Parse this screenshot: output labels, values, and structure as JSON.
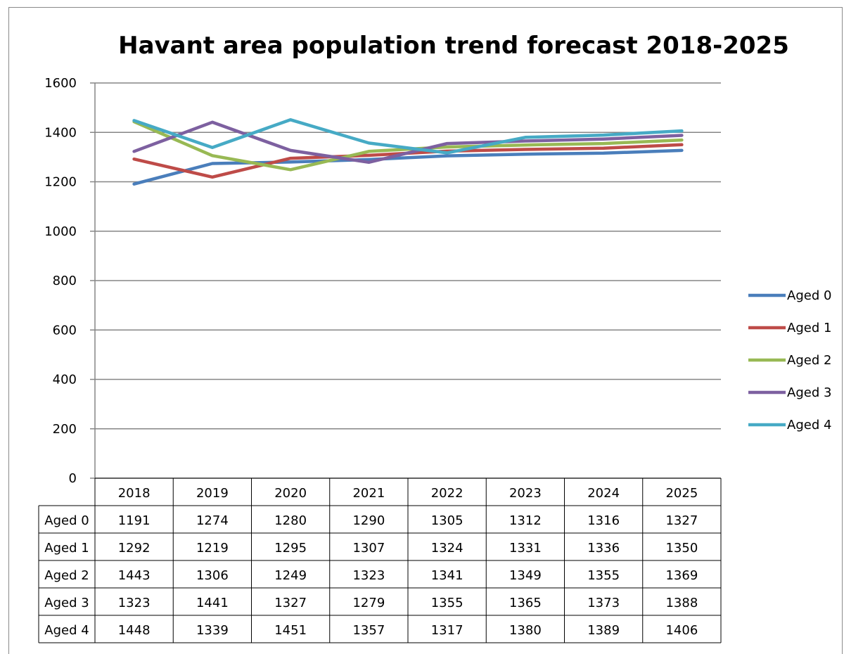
{
  "chart_data": {
    "type": "line",
    "title": "Havant area population trend forecast 2018-2025",
    "xlabel": "",
    "ylabel": "",
    "categories": [
      "2018",
      "2019",
      "2020",
      "2021",
      "2022",
      "2023",
      "2024",
      "2025"
    ],
    "ylim": [
      0,
      1600
    ],
    "yticks": [
      "0",
      "200",
      "400",
      "600",
      "800",
      "1000",
      "1200",
      "1400",
      "1600"
    ],
    "grid": true,
    "legend_position": "right",
    "data_table": true,
    "series": [
      {
        "name": "Aged 0",
        "color": "#4a7ebb",
        "values": [
          1191,
          1274,
          1280,
          1290,
          1305,
          1312,
          1316,
          1327
        ]
      },
      {
        "name": "Aged 1",
        "color": "#be4b48",
        "values": [
          1292,
          1219,
          1295,
          1307,
          1324,
          1331,
          1336,
          1350
        ]
      },
      {
        "name": "Aged 2",
        "color": "#98b954",
        "values": [
          1443,
          1306,
          1249,
          1323,
          1341,
          1349,
          1355,
          1369
        ]
      },
      {
        "name": "Aged 3",
        "color": "#7d60a0",
        "values": [
          1323,
          1441,
          1327,
          1279,
          1355,
          1365,
          1373,
          1388
        ]
      },
      {
        "name": "Aged 4",
        "color": "#46aac5",
        "values": [
          1448,
          1339,
          1451,
          1357,
          1317,
          1380,
          1389,
          1406
        ]
      }
    ]
  }
}
